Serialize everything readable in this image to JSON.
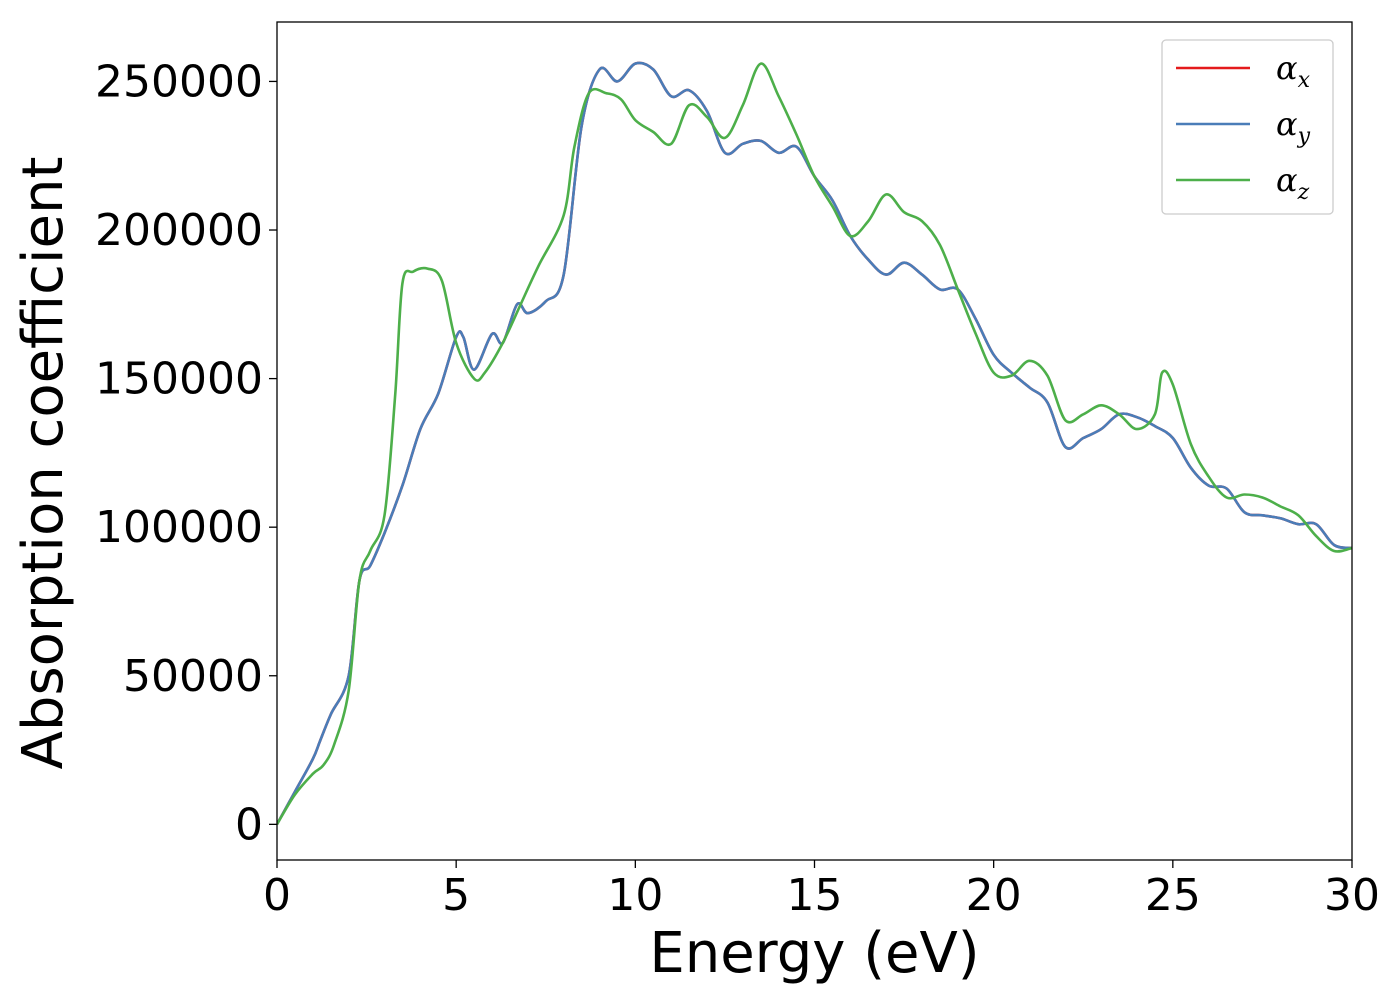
{
  "chart_data": {
    "type": "line",
    "xlabel": "Energy (eV)",
    "ylabel": "Absorption coefficient",
    "xlim": [
      0,
      30
    ],
    "ylim": [
      -12000,
      270000
    ],
    "xticks": [
      0,
      5,
      10,
      15,
      20,
      25,
      30
    ],
    "yticks": [
      0,
      50000,
      100000,
      150000,
      200000,
      250000
    ],
    "grid": false,
    "legend_position": "top-right",
    "series": [
      {
        "name": "α_x",
        "symbol": "α",
        "subscript": "x",
        "color": "#e41a1c",
        "x": [
          0,
          0.5,
          1.0,
          1.2,
          1.5,
          2.0,
          2.3,
          2.6,
          3.0,
          3.5,
          4.0,
          4.5,
          5.0,
          5.2,
          5.5,
          6.0,
          6.3,
          6.7,
          7.0,
          7.5,
          8.0,
          8.5,
          9.0,
          9.5,
          10.0,
          10.5,
          11.0,
          11.5,
          12.0,
          12.5,
          13.0,
          13.5,
          14.0,
          14.5,
          15.0,
          15.5,
          16.0,
          16.5,
          17.0,
          17.5,
          18.0,
          18.5,
          19.0,
          19.5,
          20.0,
          20.5,
          21.0,
          21.5,
          22.0,
          22.5,
          23.0,
          23.5,
          24.0,
          24.5,
          25.0,
          25.5,
          26.0,
          26.5,
          27.0,
          27.5,
          28.0,
          28.5,
          29.0,
          29.5,
          30.0
        ],
        "y": [
          0,
          11000,
          22000,
          28000,
          37000,
          50000,
          82000,
          87000,
          98000,
          114000,
          133000,
          145000,
          164000,
          164000,
          153000,
          165000,
          162000,
          175000,
          172000,
          176000,
          185000,
          235000,
          254000,
          250000,
          256000,
          254000,
          245000,
          247000,
          240000,
          226000,
          229000,
          230000,
          226000,
          228000,
          218000,
          210000,
          198000,
          190000,
          185000,
          189000,
          185000,
          180000,
          180000,
          170000,
          158000,
          152000,
          147000,
          142000,
          127000,
          130000,
          133000,
          138000,
          137000,
          134000,
          130000,
          120000,
          114000,
          113000,
          105000,
          104000,
          103000,
          101000,
          101000,
          94000,
          93000
        ]
      },
      {
        "name": "α_y",
        "symbol": "α",
        "subscript": "y",
        "color": "#4a7db8",
        "x": [
          0,
          0.5,
          1.0,
          1.2,
          1.5,
          2.0,
          2.3,
          2.6,
          3.0,
          3.5,
          4.0,
          4.5,
          5.0,
          5.2,
          5.5,
          6.0,
          6.3,
          6.7,
          7.0,
          7.5,
          8.0,
          8.5,
          9.0,
          9.5,
          10.0,
          10.5,
          11.0,
          11.5,
          12.0,
          12.5,
          13.0,
          13.5,
          14.0,
          14.5,
          15.0,
          15.5,
          16.0,
          16.5,
          17.0,
          17.5,
          18.0,
          18.5,
          19.0,
          19.5,
          20.0,
          20.5,
          21.0,
          21.5,
          22.0,
          22.5,
          23.0,
          23.5,
          24.0,
          24.5,
          25.0,
          25.5,
          26.0,
          26.5,
          27.0,
          27.5,
          28.0,
          28.5,
          29.0,
          29.5,
          30.0
        ],
        "y": [
          0,
          11000,
          22000,
          28000,
          37000,
          50000,
          82000,
          87000,
          98000,
          114000,
          133000,
          145000,
          164000,
          164000,
          153000,
          165000,
          162000,
          175000,
          172000,
          176000,
          185000,
          235000,
          254000,
          250000,
          256000,
          254000,
          245000,
          247000,
          240000,
          226000,
          229000,
          230000,
          226000,
          228000,
          218000,
          210000,
          198000,
          190000,
          185000,
          189000,
          185000,
          180000,
          180000,
          170000,
          158000,
          152000,
          147000,
          142000,
          127000,
          130000,
          133000,
          138000,
          137000,
          134000,
          130000,
          120000,
          114000,
          113000,
          105000,
          104000,
          103000,
          101000,
          101000,
          94000,
          93000
        ]
      },
      {
        "name": "α_z",
        "symbol": "α",
        "subscript": "z",
        "color": "#4daf4a",
        "x": [
          0,
          0.5,
          1.0,
          1.3,
          1.6,
          2.0,
          2.3,
          2.6,
          3.0,
          3.3,
          3.5,
          3.8,
          4.2,
          4.6,
          5.0,
          5.5,
          5.8,
          6.3,
          6.8,
          7.3,
          8.0,
          8.3,
          8.7,
          9.2,
          9.6,
          10.0,
          10.5,
          11.0,
          11.5,
          12.0,
          12.5,
          13.0,
          13.5,
          14.0,
          14.5,
          15.0,
          15.5,
          16.0,
          16.5,
          17.0,
          17.5,
          18.0,
          18.5,
          19.0,
          19.5,
          20.0,
          20.5,
          21.0,
          21.5,
          22.0,
          22.5,
          23.0,
          23.5,
          24.0,
          24.5,
          24.7,
          25.0,
          25.5,
          26.0,
          26.5,
          27.0,
          27.5,
          28.0,
          28.5,
          29.0,
          29.5,
          30.0
        ],
        "y": [
          0,
          10000,
          17000,
          20000,
          27000,
          45000,
          82000,
          92000,
          104000,
          145000,
          182000,
          186000,
          187000,
          183000,
          162000,
          150000,
          152000,
          162000,
          175000,
          188000,
          205000,
          228000,
          246000,
          246000,
          244000,
          237000,
          233000,
          229000,
          242000,
          238000,
          231000,
          242000,
          256000,
          245000,
          232000,
          218000,
          208000,
          198000,
          203000,
          212000,
          206000,
          203000,
          195000,
          180000,
          165000,
          152000,
          151000,
          156000,
          151000,
          136000,
          138000,
          141000,
          138000,
          133000,
          138000,
          152000,
          148000,
          128000,
          117000,
          110000,
          111000,
          110000,
          107000,
          104000,
          97000,
          92000,
          93000
        ]
      }
    ]
  }
}
